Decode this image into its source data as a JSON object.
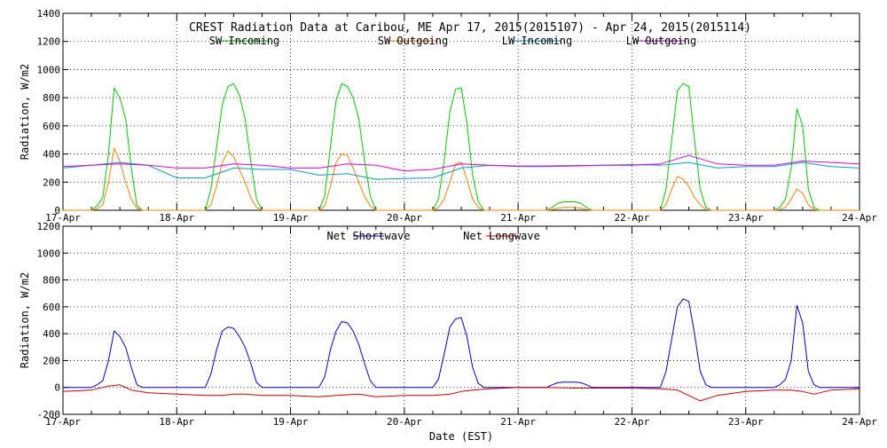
{
  "title": "CREST Radiation Data at Caribou, ME   Apr 17, 2015(2015107) - Apr 24, 2015(2015114)",
  "xlabel": "Date (EST)",
  "chart_data": [
    {
      "type": "line",
      "ylabel": "Radiation, W/m2",
      "ylim": [
        0,
        1400
      ],
      "yticks": [
        0,
        200,
        400,
        600,
        800,
        1000,
        1200,
        1400
      ],
      "xlim": [
        0,
        7
      ],
      "x_unit": "days since 17-Apr 00:00 EST",
      "xticks": [
        "17-Apr",
        "18-Apr",
        "19-Apr",
        "20-Apr",
        "21-Apr",
        "22-Apr",
        "23-Apr",
        "24-Apr"
      ],
      "grid": true,
      "legend_position": "top",
      "series": [
        {
          "name": "SW Incoming",
          "color": "#00cc00",
          "x": [
            0,
            0.25,
            0.3,
            0.35,
            0.4,
            0.45,
            0.5,
            0.55,
            0.6,
            0.65,
            0.7,
            0.75,
            1,
            1.25,
            1.3,
            1.35,
            1.4,
            1.45,
            1.5,
            1.55,
            1.6,
            1.65,
            1.7,
            1.75,
            2,
            2.25,
            2.3,
            2.35,
            2.4,
            2.45,
            2.5,
            2.55,
            2.6,
            2.65,
            2.7,
            2.75,
            3,
            3.25,
            3.3,
            3.35,
            3.4,
            3.45,
            3.5,
            3.55,
            3.6,
            3.65,
            3.7,
            3.75,
            4,
            4.25,
            4.3,
            4.35,
            4.4,
            4.45,
            4.5,
            4.55,
            4.6,
            4.65,
            4.7,
            4.75,
            5,
            5.25,
            5.3,
            5.35,
            5.4,
            5.45,
            5.5,
            5.55,
            5.6,
            5.65,
            5.7,
            5.75,
            6,
            6.25,
            6.3,
            6.35,
            6.4,
            6.45,
            6.5,
            6.55,
            6.6,
            6.65,
            6.7,
            6.75,
            7
          ],
          "y": [
            0,
            0,
            30,
            90,
            400,
            870,
            800,
            650,
            300,
            30,
            0,
            0,
            0,
            0,
            150,
            450,
            750,
            880,
            900,
            820,
            650,
            350,
            80,
            0,
            0,
            0,
            100,
            450,
            780,
            900,
            880,
            800,
            650,
            350,
            100,
            0,
            0,
            0,
            80,
            350,
            700,
            860,
            870,
            620,
            250,
            60,
            0,
            0,
            0,
            0,
            20,
            50,
            60,
            60,
            60,
            50,
            20,
            0,
            0,
            0,
            0,
            0,
            150,
            500,
            850,
            900,
            880,
            500,
            150,
            20,
            0,
            0,
            0,
            0,
            20,
            80,
            300,
            720,
            600,
            150,
            20,
            0,
            0,
            0,
            0
          ]
        },
        {
          "name": "SW Outgoing",
          "color": "#ff8000",
          "x": [
            0,
            0.25,
            0.3,
            0.35,
            0.4,
            0.45,
            0.5,
            0.55,
            0.6,
            0.65,
            0.7,
            0.75,
            1,
            1.25,
            1.3,
            1.35,
            1.4,
            1.45,
            1.5,
            1.55,
            1.6,
            1.65,
            1.7,
            1.75,
            2,
            2.25,
            2.3,
            2.35,
            2.4,
            2.45,
            2.5,
            2.55,
            2.6,
            2.65,
            2.7,
            2.75,
            3,
            3.25,
            3.3,
            3.35,
            3.4,
            3.45,
            3.5,
            3.55,
            3.6,
            3.65,
            3.7,
            3.75,
            4,
            4.25,
            4.3,
            4.35,
            4.4,
            4.45,
            4.5,
            4.55,
            4.6,
            4.65,
            4.7,
            4.75,
            5,
            5.25,
            5.3,
            5.35,
            5.4,
            5.45,
            5.5,
            5.55,
            5.6,
            5.65,
            5.7,
            5.75,
            6,
            6.25,
            6.3,
            6.35,
            6.4,
            6.45,
            6.5,
            6.55,
            6.6,
            6.65,
            6.7,
            6.75,
            7
          ],
          "y": [
            0,
            0,
            10,
            40,
            200,
            440,
            350,
            200,
            80,
            10,
            0,
            0,
            0,
            0,
            40,
            170,
            340,
            420,
            380,
            290,
            200,
            90,
            20,
            0,
            0,
            0,
            30,
            170,
            340,
            400,
            390,
            300,
            200,
            100,
            30,
            0,
            0,
            0,
            20,
            80,
            200,
            330,
            340,
            220,
            80,
            20,
            0,
            0,
            0,
            0,
            5,
            15,
            20,
            20,
            20,
            15,
            5,
            0,
            0,
            0,
            0,
            0,
            40,
            150,
            240,
            220,
            170,
            90,
            40,
            5,
            0,
            0,
            0,
            0,
            5,
            20,
            80,
            150,
            120,
            40,
            5,
            0,
            0,
            0,
            0
          ]
        },
        {
          "name": "LW Incoming",
          "color": "#00a0c8",
          "x": [
            0,
            0.25,
            0.5,
            0.75,
            1,
            1.25,
            1.5,
            1.75,
            2,
            2.25,
            2.5,
            2.75,
            3,
            3.25,
            3.5,
            3.75,
            4,
            4.25,
            4.5,
            4.75,
            5,
            5.25,
            5.5,
            5.75,
            6,
            6.25,
            6.5,
            6.75,
            7
          ],
          "y": [
            300,
            320,
            340,
            320,
            230,
            230,
            300,
            290,
            290,
            250,
            260,
            220,
            225,
            230,
            300,
            320,
            310,
            310,
            315,
            320,
            325,
            320,
            340,
            300,
            310,
            310,
            340,
            310,
            300
          ]
        },
        {
          "name": "LW Outgoing",
          "color": "#e000e0",
          "x": [
            0,
            0.25,
            0.5,
            0.75,
            1,
            1.25,
            1.5,
            1.75,
            2,
            2.25,
            2.5,
            2.75,
            3,
            3.25,
            3.5,
            3.75,
            4,
            4.25,
            4.5,
            4.75,
            5,
            5.25,
            5.5,
            5.75,
            6,
            6.25,
            6.5,
            6.75,
            7
          ],
          "y": [
            310,
            320,
            330,
            320,
            300,
            300,
            330,
            320,
            300,
            300,
            330,
            320,
            280,
            290,
            330,
            320,
            315,
            315,
            318,
            320,
            320,
            330,
            390,
            330,
            320,
            320,
            350,
            340,
            330
          ]
        }
      ]
    },
    {
      "type": "line",
      "ylabel": "Radiation, W/m2",
      "ylim": [
        -200,
        1200
      ],
      "yticks": [
        -200,
        0,
        200,
        400,
        600,
        800,
        1000,
        1200
      ],
      "xlim": [
        0,
        7
      ],
      "x_unit": "days since 17-Apr 00:00 EST",
      "xticks": [
        "17-Apr",
        "18-Apr",
        "19-Apr",
        "20-Apr",
        "21-Apr",
        "22-Apr",
        "23-Apr",
        "24-Apr"
      ],
      "grid": true,
      "legend_position": "top",
      "series": [
        {
          "name": "Net Shortwave",
          "color": "#0000cc",
          "x": [
            0,
            0.25,
            0.3,
            0.35,
            0.4,
            0.45,
            0.5,
            0.55,
            0.6,
            0.65,
            0.7,
            0.75,
            1,
            1.25,
            1.3,
            1.35,
            1.4,
            1.45,
            1.5,
            1.55,
            1.6,
            1.65,
            1.7,
            1.75,
            2,
            2.25,
            2.3,
            2.35,
            2.4,
            2.45,
            2.5,
            2.55,
            2.6,
            2.65,
            2.7,
            2.75,
            3,
            3.25,
            3.3,
            3.35,
            3.4,
            3.45,
            3.5,
            3.55,
            3.6,
            3.65,
            3.7,
            3.75,
            4,
            4.25,
            4.3,
            4.35,
            4.4,
            4.45,
            4.5,
            4.55,
            4.6,
            4.65,
            4.7,
            4.75,
            5,
            5.25,
            5.3,
            5.35,
            5.4,
            5.45,
            5.5,
            5.55,
            5.6,
            5.65,
            5.7,
            5.75,
            6,
            6.25,
            6.3,
            6.35,
            6.4,
            6.45,
            6.5,
            6.55,
            6.6,
            6.65,
            6.7,
            6.75,
            7
          ],
          "y": [
            0,
            0,
            20,
            50,
            200,
            420,
            380,
            300,
            150,
            20,
            0,
            0,
            0,
            0,
            100,
            280,
            420,
            450,
            440,
            380,
            300,
            180,
            40,
            0,
            0,
            0,
            80,
            280,
            420,
            490,
            480,
            420,
            320,
            180,
            50,
            0,
            0,
            0,
            60,
            250,
            450,
            510,
            520,
            380,
            150,
            30,
            0,
            0,
            0,
            0,
            20,
            35,
            40,
            40,
            40,
            35,
            20,
            0,
            0,
            0,
            0,
            0,
            120,
            360,
            600,
            660,
            640,
            400,
            120,
            20,
            0,
            0,
            0,
            0,
            20,
            60,
            200,
            610,
            480,
            120,
            20,
            0,
            0,
            0,
            0
          ]
        },
        {
          "name": "Net Longwave",
          "color": "#cc0000",
          "x": [
            0,
            0.25,
            0.4,
            0.5,
            0.6,
            0.75,
            1,
            1.25,
            1.4,
            1.5,
            1.6,
            1.75,
            2,
            2.25,
            2.4,
            2.5,
            2.6,
            2.75,
            3,
            3.25,
            3.4,
            3.5,
            3.6,
            3.75,
            4,
            4.25,
            4.5,
            4.75,
            5,
            5.25,
            5.4,
            5.5,
            5.6,
            5.75,
            6,
            6.25,
            6.4,
            6.5,
            6.6,
            6.75,
            7
          ],
          "y": [
            -30,
            -20,
            10,
            20,
            -20,
            -40,
            -50,
            -60,
            -60,
            -50,
            -50,
            -60,
            -60,
            -70,
            -60,
            -55,
            -50,
            -70,
            -60,
            -60,
            -50,
            -30,
            -20,
            -10,
            0,
            0,
            -5,
            -5,
            -5,
            -10,
            -20,
            -60,
            -100,
            -60,
            -30,
            -20,
            -20,
            -30,
            -50,
            -20,
            -10
          ]
        }
      ]
    }
  ]
}
